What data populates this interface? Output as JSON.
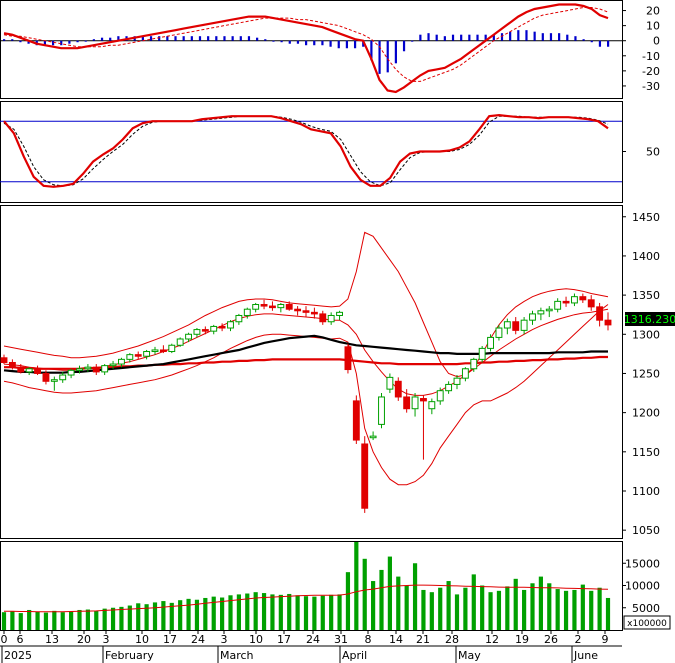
{
  "colors": {
    "background": "#ffffff",
    "grid": "#000000",
    "candle_up": "#00a000",
    "candle_down": "#e00000",
    "bollinger": "#e00000",
    "ma_red": "#e00000",
    "ma_black": "#000000",
    "macd_hist": "#0000cc",
    "volume": "#00a000",
    "volume_ma": "#e00000",
    "price_box": "#000000",
    "price_box_text": "#00ff00",
    "stoch_line": "#e00000",
    "stoch_band": "#0000cc"
  },
  "price_label": "1316.230",
  "volume_multiplier_label": "x100000",
  "chart_data": [
    {
      "type": "bar",
      "panel": "macd",
      "ylim": [
        -38,
        27
      ],
      "yticks": [
        "20",
        "10",
        "0",
        "-10",
        "-20",
        "-30"
      ],
      "macd": [
        5,
        4,
        2,
        0,
        -2,
        -3,
        -4,
        -5,
        -5,
        -5,
        -4,
        -3,
        -2,
        -1,
        0,
        1,
        2,
        3,
        4,
        5,
        6,
        7,
        8,
        9,
        10,
        11,
        12,
        13,
        14,
        15,
        16,
        16,
        16,
        15,
        14,
        13,
        12,
        11,
        10,
        9,
        7,
        5,
        3,
        1,
        0,
        -12,
        -26,
        -33,
        -34,
        -31,
        -27,
        -23,
        -20,
        -19,
        -18,
        -15,
        -12,
        -8,
        -4,
        0,
        4,
        8,
        12,
        16,
        19,
        21,
        22,
        23,
        24,
        24,
        24,
        23,
        21,
        17,
        15
      ],
      "signal": [
        4,
        3,
        3,
        2,
        1,
        0,
        -1,
        -2,
        -3,
        -4,
        -4,
        -4,
        -4,
        -3,
        -3,
        -2,
        -1,
        0,
        1,
        2,
        3,
        4,
        5,
        6,
        7,
        8,
        9,
        10,
        11,
        12,
        13,
        14,
        15,
        15,
        15,
        15,
        14,
        14,
        13,
        12,
        11,
        10,
        8,
        6,
        4,
        1,
        -4,
        -12,
        -19,
        -24,
        -27,
        -27,
        -25,
        -23,
        -21,
        -19,
        -16,
        -12,
        -8,
        -4,
        0,
        3,
        6,
        9,
        12,
        15,
        17,
        18,
        19,
        20,
        21,
        22,
        22,
        21,
        19
      ],
      "histogram": [
        1,
        1,
        -1,
        -2,
        -3,
        -3,
        -3,
        -3,
        -2,
        -1,
        0,
        1,
        2,
        2,
        3,
        3,
        3,
        3,
        3,
        3,
        3,
        3,
        3,
        3,
        3,
        3,
        3,
        3,
        3,
        3,
        3,
        2,
        1,
        0,
        -1,
        -2,
        -2,
        -3,
        -3,
        -3,
        -4,
        -5,
        -5,
        -5,
        -4,
        -13,
        -22,
        -21,
        -15,
        -7,
        0,
        4,
        5,
        4,
        3,
        4,
        4,
        4,
        4,
        4,
        4,
        5,
        6,
        7,
        7,
        6,
        5,
        5,
        5,
        4,
        3,
        1,
        -1,
        -4,
        -4
      ]
    },
    {
      "type": "line",
      "panel": "stochastic",
      "ylim": [
        0,
        100
      ],
      "yticks": [
        "50"
      ],
      "bands": [
        80,
        20
      ],
      "k": [
        80,
        68,
        45,
        25,
        16,
        15,
        16,
        18,
        28,
        40,
        47,
        53,
        62,
        73,
        78,
        80,
        80,
        80,
        80,
        80,
        82,
        83,
        84,
        85,
        85,
        85,
        85,
        85,
        83,
        80,
        77,
        72,
        70,
        68,
        55,
        35,
        22,
        16,
        16,
        24,
        40,
        48,
        50,
        50,
        50,
        51,
        54,
        60,
        72,
        85,
        86,
        85,
        84,
        84,
        83,
        84,
        84,
        84,
        83,
        82,
        80,
        73
      ],
      "d": [
        78,
        72,
        55,
        35,
        22,
        17,
        16,
        17,
        23,
        33,
        42,
        50,
        57,
        67,
        75,
        79,
        80,
        80,
        80,
        80,
        81,
        82,
        83,
        84,
        85,
        85,
        85,
        85,
        84,
        82,
        79,
        75,
        72,
        70,
        62,
        46,
        30,
        20,
        16,
        19,
        32,
        44,
        49,
        50,
        50,
        50,
        52,
        57,
        66,
        79,
        85,
        85,
        85,
        84,
        84,
        84,
        84,
        84,
        84,
        83,
        81,
        77
      ]
    },
    {
      "type": "candlestick",
      "panel": "price",
      "ylim": [
        1040,
        1465
      ],
      "yticks": [
        "1450",
        "1400",
        "1350",
        "1300",
        "1250",
        "1200",
        "1150",
        "1100",
        "1050"
      ],
      "candles": [
        [
          1270,
          1274,
          1262,
          1264
        ],
        [
          1264,
          1268,
          1255,
          1258
        ],
        [
          1258,
          1262,
          1250,
          1252
        ],
        [
          1252,
          1258,
          1248,
          1256
        ],
        [
          1256,
          1260,
          1248,
          1250
        ],
        [
          1250,
          1254,
          1236,
          1240
        ],
        [
          1240,
          1246,
          1228,
          1242
        ],
        [
          1242,
          1252,
          1238,
          1248
        ],
        [
          1248,
          1256,
          1244,
          1254
        ],
        [
          1254,
          1260,
          1250,
          1256
        ],
        [
          1256,
          1262,
          1252,
          1258
        ],
        [
          1258,
          1262,
          1248,
          1252
        ],
        [
          1252,
          1262,
          1248,
          1260
        ],
        [
          1260,
          1266,
          1256,
          1262
        ],
        [
          1262,
          1270,
          1258,
          1268
        ],
        [
          1268,
          1276,
          1264,
          1274
        ],
        [
          1274,
          1278,
          1268,
          1272
        ],
        [
          1272,
          1280,
          1268,
          1278
        ],
        [
          1278,
          1284,
          1274,
          1280
        ],
        [
          1280,
          1286,
          1276,
          1278
        ],
        [
          1278,
          1288,
          1276,
          1286
        ],
        [
          1286,
          1296,
          1284,
          1294
        ],
        [
          1294,
          1302,
          1290,
          1300
        ],
        [
          1300,
          1308,
          1296,
          1306
        ],
        [
          1306,
          1310,
          1300,
          1304
        ],
        [
          1304,
          1312,
          1300,
          1310
        ],
        [
          1310,
          1314,
          1304,
          1308
        ],
        [
          1308,
          1318,
          1304,
          1316
        ],
        [
          1316,
          1326,
          1312,
          1324
        ],
        [
          1324,
          1334,
          1320,
          1332
        ],
        [
          1332,
          1340,
          1328,
          1338
        ],
        [
          1338,
          1344,
          1332,
          1336
        ],
        [
          1336,
          1342,
          1330,
          1334
        ],
        [
          1334,
          1340,
          1328,
          1338
        ],
        [
          1338,
          1342,
          1330,
          1332
        ],
        [
          1332,
          1336,
          1324,
          1330
        ],
        [
          1330,
          1336,
          1322,
          1328
        ],
        [
          1328,
          1334,
          1320,
          1326
        ],
        [
          1326,
          1330,
          1312,
          1316
        ],
        [
          1316,
          1328,
          1312,
          1324
        ],
        [
          1324,
          1330,
          1318,
          1328
        ],
        [
          1284,
          1288,
          1250,
          1255
        ],
        [
          1215,
          1222,
          1160,
          1165
        ],
        [
          1160,
          1170,
          1072,
          1078
        ],
        [
          1168,
          1176,
          1165,
          1170
        ],
        [
          1185,
          1225,
          1180,
          1220
        ],
        [
          1230,
          1250,
          1225,
          1245
        ],
        [
          1240,
          1245,
          1215,
          1220
        ],
        [
          1220,
          1230,
          1200,
          1205
        ],
        [
          1205,
          1225,
          1195,
          1220
        ],
        [
          1218,
          1222,
          1140,
          1215
        ],
        [
          1205,
          1218,
          1198,
          1214
        ],
        [
          1215,
          1232,
          1210,
          1228
        ],
        [
          1228,
          1240,
          1224,
          1236
        ],
        [
          1236,
          1248,
          1230,
          1244
        ],
        [
          1244,
          1258,
          1240,
          1256
        ],
        [
          1256,
          1270,
          1252,
          1268
        ],
        [
          1268,
          1285,
          1264,
          1282
        ],
        [
          1282,
          1300,
          1278,
          1296
        ],
        [
          1296,
          1312,
          1292,
          1308
        ],
        [
          1308,
          1320,
          1300,
          1316
        ],
        [
          1316,
          1322,
          1300,
          1305
        ],
        [
          1305,
          1322,
          1300,
          1318
        ],
        [
          1318,
          1330,
          1312,
          1326
        ],
        [
          1326,
          1334,
          1318,
          1330
        ],
        [
          1330,
          1336,
          1322,
          1332
        ],
        [
          1332,
          1346,
          1328,
          1342
        ],
        [
          1342,
          1348,
          1335,
          1340
        ],
        [
          1340,
          1352,
          1336,
          1348
        ],
        [
          1348,
          1352,
          1340,
          1344
        ],
        [
          1344,
          1350,
          1330,
          1335
        ],
        [
          1335,
          1340,
          1310,
          1318
        ],
        [
          1318,
          1328,
          1305,
          1312
        ]
      ],
      "ma_red": [
        1258,
        1258,
        1257,
        1257,
        1256,
        1256,
        1256,
        1256,
        1256,
        1256,
        1257,
        1257,
        1258,
        1258,
        1259,
        1259,
        1260,
        1260,
        1261,
        1261,
        1262,
        1262,
        1263,
        1263,
        1264,
        1264,
        1265,
        1265,
        1266,
        1266,
        1267,
        1267,
        1268,
        1268,
        1268,
        1268,
        1268,
        1268,
        1268,
        1268,
        1268,
        1267,
        1266,
        1265,
        1264,
        1263,
        1263,
        1262,
        1262,
        1262,
        1262,
        1262,
        1262,
        1262,
        1262,
        1263,
        1263,
        1264,
        1264,
        1265,
        1265,
        1266,
        1266,
        1267,
        1267,
        1268,
        1268,
        1269,
        1269,
        1270,
        1270,
        1271,
        1271
      ],
      "ma_black": [
        1254,
        1253,
        1252,
        1252,
        1251,
        1251,
        1251,
        1251,
        1252,
        1252,
        1253,
        1254,
        1255,
        1256,
        1257,
        1258,
        1259,
        1260,
        1261,
        1262,
        1264,
        1266,
        1268,
        1270,
        1272,
        1274,
        1276,
        1278,
        1280,
        1283,
        1286,
        1289,
        1291,
        1293,
        1295,
        1296,
        1297,
        1298,
        1296,
        1293,
        1290,
        1288,
        1286,
        1285,
        1284,
        1283,
        1282,
        1281,
        1280,
        1279,
        1278,
        1277,
        1276,
        1276,
        1275,
        1275,
        1275,
        1275,
        1276,
        1276,
        1276,
        1276,
        1276,
        1276,
        1276,
        1276,
        1277,
        1277,
        1277,
        1277,
        1278,
        1278,
        1278
      ],
      "bb_upper": [
        1285,
        1283,
        1281,
        1279,
        1277,
        1275,
        1273,
        1272,
        1270,
        1270,
        1271,
        1272,
        1274,
        1276,
        1279,
        1282,
        1285,
        1289,
        1293,
        1297,
        1302,
        1307,
        1312,
        1318,
        1324,
        1329,
        1334,
        1338,
        1342,
        1344,
        1345,
        1345,
        1344,
        1342,
        1340,
        1339,
        1338,
        1337,
        1336,
        1335,
        1336,
        1345,
        1380,
        1430,
        1425,
        1410,
        1395,
        1380,
        1360,
        1340,
        1315,
        1290,
        1265,
        1250,
        1246,
        1248,
        1258,
        1275,
        1295,
        1312,
        1325,
        1335,
        1342,
        1348,
        1352,
        1355,
        1357,
        1358,
        1357,
        1355,
        1352,
        1350,
        1348
      ],
      "bb_lower": [
        1240,
        1238,
        1235,
        1232,
        1230,
        1228,
        1226,
        1225,
        1225,
        1226,
        1227,
        1228,
        1230,
        1232,
        1234,
        1236,
        1238,
        1240,
        1242,
        1245,
        1248,
        1252,
        1256,
        1260,
        1265,
        1270,
        1276,
        1282,
        1287,
        1292,
        1296,
        1299,
        1300,
        1300,
        1299,
        1298,
        1297,
        1296,
        1295,
        1294,
        1295,
        1290,
        1250,
        1180,
        1150,
        1130,
        1115,
        1108,
        1108,
        1112,
        1120,
        1135,
        1155,
        1170,
        1185,
        1200,
        1210,
        1215,
        1215,
        1220,
        1225,
        1232,
        1240,
        1250,
        1260,
        1270,
        1280,
        1290,
        1300,
        1310,
        1320,
        1330,
        1338
      ],
      "bb_middle": [
        1262,
        1261,
        1260,
        1258,
        1257,
        1256,
        1255,
        1254,
        1254,
        1255,
        1256,
        1257,
        1259,
        1261,
        1263,
        1265,
        1268,
        1271,
        1274,
        1278,
        1282,
        1286,
        1291,
        1296,
        1301,
        1306,
        1311,
        1316,
        1320,
        1323,
        1325,
        1326,
        1326,
        1325,
        1324,
        1323,
        1322,
        1321,
        1320,
        1318,
        1318,
        1312,
        1300,
        1280,
        1265,
        1252,
        1240,
        1230,
        1224,
        1222,
        1222,
        1224,
        1228,
        1234,
        1240,
        1248,
        1256,
        1264,
        1272,
        1280,
        1287,
        1294,
        1300,
        1306,
        1311,
        1315,
        1319,
        1322,
        1325,
        1327,
        1328,
        1330,
        1332
      ]
    },
    {
      "type": "bar",
      "panel": "volume",
      "ylim": [
        0,
        20000
      ],
      "yticks": [
        "15000",
        "10000",
        "5000"
      ],
      "values": [
        4000,
        4200,
        3800,
        4500,
        4100,
        3900,
        4300,
        4000,
        4200,
        4500,
        4600,
        4300,
        4800,
        5000,
        5200,
        5500,
        6000,
        5800,
        6200,
        6500,
        6100,
        6700,
        7000,
        6800,
        7200,
        7500,
        7300,
        7800,
        8000,
        8200,
        8500,
        8300,
        8000,
        7900,
        8100,
        7800,
        7600,
        7500,
        7700,
        7900,
        8000,
        13000,
        20500,
        16000,
        11000,
        13500,
        16500,
        12000,
        10000,
        15000,
        9000,
        8500,
        9500,
        11000,
        8000,
        9500,
        12500,
        10000,
        8500,
        8800,
        9800,
        11500,
        9000,
        10500,
        12000,
        10500,
        9200,
        8800,
        9000,
        10200,
        8800,
        9500,
        7200
      ],
      "ma": [
        4200,
        4200,
        4150,
        4150,
        4100,
        4100,
        4100,
        4100,
        4150,
        4200,
        4250,
        4300,
        4400,
        4500,
        4600,
        4700,
        4800,
        4900,
        5000,
        5150,
        5300,
        5450,
        5600,
        5800,
        6000,
        6200,
        6400,
        6600,
        6800,
        7000,
        7200,
        7300,
        7400,
        7500,
        7600,
        7700,
        7750,
        7800,
        7800,
        7800,
        7850,
        8100,
        8600,
        9000,
        9200,
        9500,
        9800,
        9900,
        10000,
        10100,
        10100,
        10050,
        10000,
        9950,
        9900,
        9850,
        9800,
        9750,
        9700,
        9650,
        9600,
        9600,
        9600,
        9550,
        9500,
        9500,
        9450,
        9400,
        9350,
        9300,
        9250,
        9200,
        9150
      ]
    }
  ],
  "x_tick_labels": [
    "0",
    "6",
    "13",
    "20",
    "3",
    "10",
    "17",
    "24",
    "3",
    "10",
    "17",
    "24",
    "31",
    "8",
    "14",
    "21",
    "28",
    "12",
    "19",
    "26",
    "2",
    "9"
  ],
  "x_month_labels": [
    "2025",
    "February",
    "March",
    "April",
    "May",
    "June"
  ]
}
